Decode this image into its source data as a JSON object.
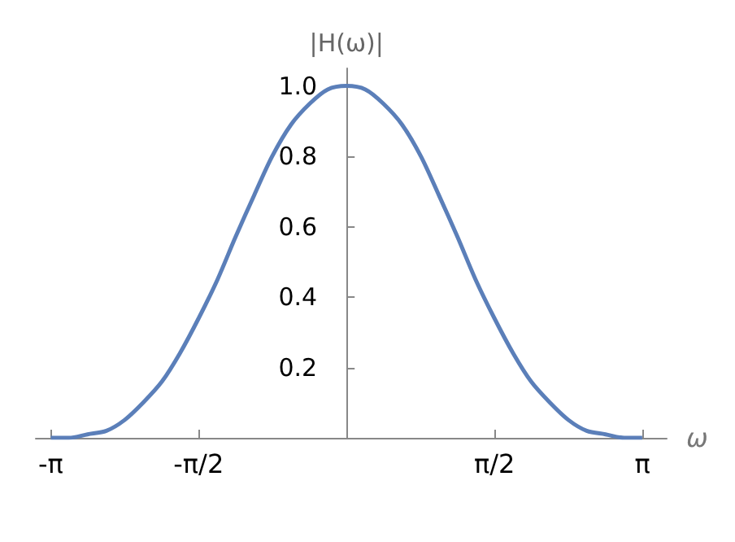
{
  "chart_data": {
    "type": "line",
    "xlabel": "ω",
    "ylabel": "|H(ω)|",
    "x": [
      -3.14,
      -2.95,
      -2.75,
      -2.55,
      -2.36,
      -2.16,
      -1.96,
      -1.77,
      -1.57,
      -1.37,
      -1.18,
      -0.98,
      -0.79,
      -0.59,
      -0.39,
      -0.2,
      0,
      0.2,
      0.39,
      0.59,
      0.79,
      0.98,
      1.18,
      1.37,
      1.57,
      1.77,
      1.96,
      2.16,
      2.36,
      2.55,
      2.75,
      2.95,
      3.14
    ],
    "series": [
      {
        "color": "#5b7fb9",
        "values": [
          0,
          0,
          0.01,
          0.02,
          0.05,
          0.1,
          0.16,
          0.24,
          0.34,
          0.45,
          0.57,
          0.69,
          0.8,
          0.89,
          0.95,
          0.99,
          1.0,
          0.99,
          0.95,
          0.89,
          0.8,
          0.69,
          0.57,
          0.45,
          0.34,
          0.24,
          0.16,
          0.1,
          0.05,
          0.02,
          0.01,
          0,
          0
        ]
      }
    ],
    "xlim": [
      -3.3,
      3.4
    ],
    "ylim": [
      0,
      1.05
    ],
    "xticks": [
      {
        "value": -3.14159,
        "label": "-π"
      },
      {
        "value": -1.5708,
        "label": "-π/2"
      },
      {
        "value": 1.5708,
        "label": "π/2"
      },
      {
        "value": 3.14159,
        "label": "π"
      }
    ],
    "yticks": [
      {
        "value": 0.2,
        "label": "0.2"
      },
      {
        "value": 0.4,
        "label": "0.4"
      },
      {
        "value": 0.6,
        "label": "0.6"
      },
      {
        "value": 0.8,
        "label": "0.8"
      },
      {
        "value": 1.0,
        "label": "1.0"
      }
    ],
    "grid": false,
    "marker": "none",
    "line_style": "solid"
  }
}
